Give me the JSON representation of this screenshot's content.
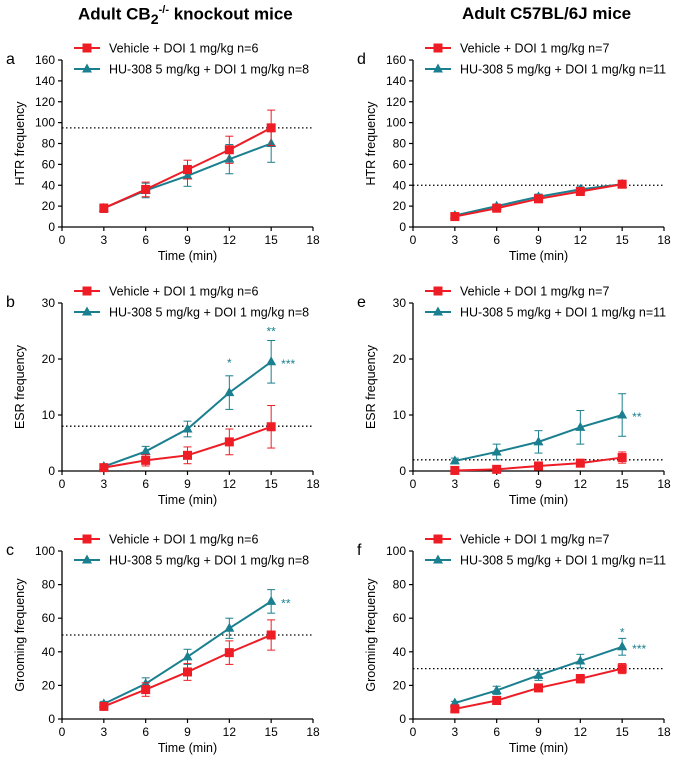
{
  "headers": {
    "left_prefix": "Adult CB",
    "left_sub": "2",
    "left_sup": "-/-",
    "left_suffix": " knockout mice",
    "right": "Adult C57BL/6J mice"
  },
  "colors": {
    "vehicle": "#ee1c25",
    "hu308": "#1a7f8e",
    "axis": "#000000"
  },
  "chart_data": [
    {
      "panel": "a",
      "type": "line",
      "xlabel": "Time (min)",
      "ylabel": "HTR frequency",
      "xticks": [
        0,
        3,
        6,
        9,
        12,
        15,
        18
      ],
      "xlim": [
        0,
        18
      ],
      "ylim": [
        0,
        160
      ],
      "yticks": [
        0,
        20,
        40,
        60,
        80,
        100,
        120,
        140,
        160
      ],
      "refline": 95,
      "series": [
        {
          "name": "Vehicle + DOI 1 mg/kg n=6",
          "marker": "square",
          "x": [
            3,
            6,
            9,
            12,
            15
          ],
          "values": [
            18,
            36,
            55,
            74,
            95
          ],
          "err": [
            4,
            7,
            9,
            13,
            17
          ]
        },
        {
          "name": "HU-308 5 mg/kg + DOI 1 mg/kg n=8",
          "marker": "triangle",
          "x": [
            3,
            6,
            9,
            12,
            15
          ],
          "values": [
            18,
            35,
            49,
            65,
            80
          ],
          "err": [
            4,
            7,
            10,
            14,
            18
          ]
        }
      ],
      "annotations": []
    },
    {
      "panel": "b",
      "type": "line",
      "xlabel": "Time (min)",
      "ylabel": "ESR frequency",
      "xticks": [
        0,
        3,
        6,
        9,
        12,
        15,
        18
      ],
      "xlim": [
        0,
        18
      ],
      "ylim": [
        0,
        30
      ],
      "yticks": [
        0,
        10,
        20,
        30
      ],
      "refline": 8,
      "series": [
        {
          "name": "Vehicle + DOI 1 mg/kg n=6",
          "marker": "square",
          "x": [
            3,
            6,
            9,
            12,
            15
          ],
          "values": [
            0.6,
            1.9,
            2.8,
            5.2,
            7.9
          ],
          "err": [
            0.5,
            1.0,
            1.5,
            2.3,
            3.8
          ]
        },
        {
          "name": "HU-308 5 mg/kg + DOI 1 mg/kg n=8",
          "marker": "triangle",
          "x": [
            3,
            6,
            9,
            12,
            15
          ],
          "values": [
            0.8,
            3.5,
            7.5,
            14,
            19.5
          ],
          "err": [
            0.4,
            0.9,
            1.4,
            3.0,
            3.8
          ]
        }
      ],
      "annotations": [
        {
          "text": "*",
          "x": 12,
          "y": 18.2,
          "pos": "above"
        },
        {
          "text": "**",
          "x": 15,
          "y": 23.8,
          "pos": "above"
        },
        {
          "text": "***",
          "x": 15,
          "y": 19.5,
          "pos": "right"
        }
      ]
    },
    {
      "panel": "c",
      "type": "line",
      "xlabel": "Time (min)",
      "ylabel": "Grooming frequency",
      "xticks": [
        0,
        3,
        6,
        9,
        12,
        15,
        18
      ],
      "xlim": [
        0,
        18
      ],
      "ylim": [
        0,
        100
      ],
      "yticks": [
        0,
        20,
        40,
        60,
        80,
        100
      ],
      "refline": 50,
      "series": [
        {
          "name": "Vehicle + DOI 1 mg/kg n=6",
          "marker": "square",
          "x": [
            3,
            6,
            9,
            12,
            15
          ],
          "values": [
            7.5,
            17.5,
            28,
            39.5,
            50
          ],
          "err": [
            1.5,
            4,
            5,
            7,
            9
          ]
        },
        {
          "name": "HU-308 5 mg/kg + DOI 1 mg/kg n=8",
          "marker": "triangle",
          "x": [
            3,
            6,
            9,
            12,
            15
          ],
          "values": [
            9,
            21,
            37,
            54,
            70
          ],
          "err": [
            1.5,
            3.5,
            4.5,
            6,
            7
          ]
        }
      ],
      "annotations": [
        {
          "text": "**",
          "x": 15,
          "y": 70,
          "pos": "right"
        }
      ]
    },
    {
      "panel": "d",
      "type": "line",
      "xlabel": "Time (min)",
      "ylabel": "HTR frequency",
      "xticks": [
        0,
        3,
        6,
        9,
        12,
        15,
        18
      ],
      "xlim": [
        0,
        18
      ],
      "ylim": [
        0,
        160
      ],
      "yticks": [
        0,
        20,
        40,
        60,
        80,
        100,
        120,
        140,
        160
      ],
      "refline": 40,
      "series": [
        {
          "name": "Vehicle + DOI 1 mg/kg n=7",
          "marker": "square",
          "x": [
            3,
            6,
            9,
            12,
            15
          ],
          "values": [
            10,
            18,
            27,
            34,
            41
          ],
          "err": [
            1.5,
            2,
            2.5,
            2.5,
            3
          ]
        },
        {
          "name": "HU-308 5 mg/kg + DOI 1 mg/kg n=11",
          "marker": "triangle",
          "x": [
            3,
            6,
            9,
            12,
            15
          ],
          "values": [
            11,
            20,
            29,
            36,
            41
          ],
          "err": [
            1.5,
            2,
            2.5,
            2.5,
            3
          ]
        }
      ],
      "annotations": []
    },
    {
      "panel": "e",
      "type": "line",
      "xlabel": "Time (min)",
      "ylabel": "ESR frequency",
      "xticks": [
        0,
        3,
        6,
        9,
        12,
        15,
        18
      ],
      "xlim": [
        0,
        18
      ],
      "ylim": [
        0,
        30
      ],
      "yticks": [
        0,
        10,
        20,
        30
      ],
      "refline": 2,
      "series": [
        {
          "name": "Vehicle + DOI 1 mg/kg n=7",
          "marker": "square",
          "x": [
            3,
            6,
            9,
            12,
            15
          ],
          "values": [
            0.1,
            0.3,
            0.9,
            1.4,
            2.4
          ],
          "err": [
            0.1,
            0.2,
            0.4,
            0.6,
            1.0
          ]
        },
        {
          "name": "HU-308 5 mg/kg + DOI 1 mg/kg n=11",
          "marker": "triangle",
          "x": [
            3,
            6,
            9,
            12,
            15
          ],
          "values": [
            1.8,
            3.4,
            5.2,
            7.8,
            10
          ],
          "err": [
            0.5,
            1.4,
            2.0,
            3.0,
            3.8
          ]
        }
      ],
      "annotations": [
        {
          "text": "**",
          "x": 15,
          "y": 10,
          "pos": "right"
        }
      ]
    },
    {
      "panel": "f",
      "type": "line",
      "xlabel": "Time (min)",
      "ylabel": "Grooming frequency",
      "xticks": [
        0,
        3,
        6,
        9,
        12,
        15,
        18
      ],
      "xlim": [
        0,
        18
      ],
      "ylim": [
        0,
        100
      ],
      "yticks": [
        0,
        20,
        40,
        60,
        80,
        100
      ],
      "refline": 30,
      "series": [
        {
          "name": "Vehicle + DOI 1 mg/kg n=7",
          "marker": "square",
          "x": [
            3,
            6,
            9,
            12,
            15
          ],
          "values": [
            6,
            11,
            18.5,
            24,
            30
          ],
          "err": [
            1,
            1.5,
            2,
            2.5,
            3
          ]
        },
        {
          "name": "HU-308 5 mg/kg + DOI 1 mg/kg n=11",
          "marker": "triangle",
          "x": [
            3,
            6,
            9,
            12,
            15
          ],
          "values": [
            9.5,
            17,
            26,
            34.5,
            43
          ],
          "err": [
            1,
            2.5,
            3,
            4,
            5
          ]
        }
      ],
      "annotations": [
        {
          "text": "*",
          "x": 15,
          "y": 48,
          "pos": "above"
        },
        {
          "text": "***",
          "x": 15,
          "y": 43,
          "pos": "right"
        }
      ]
    }
  ]
}
